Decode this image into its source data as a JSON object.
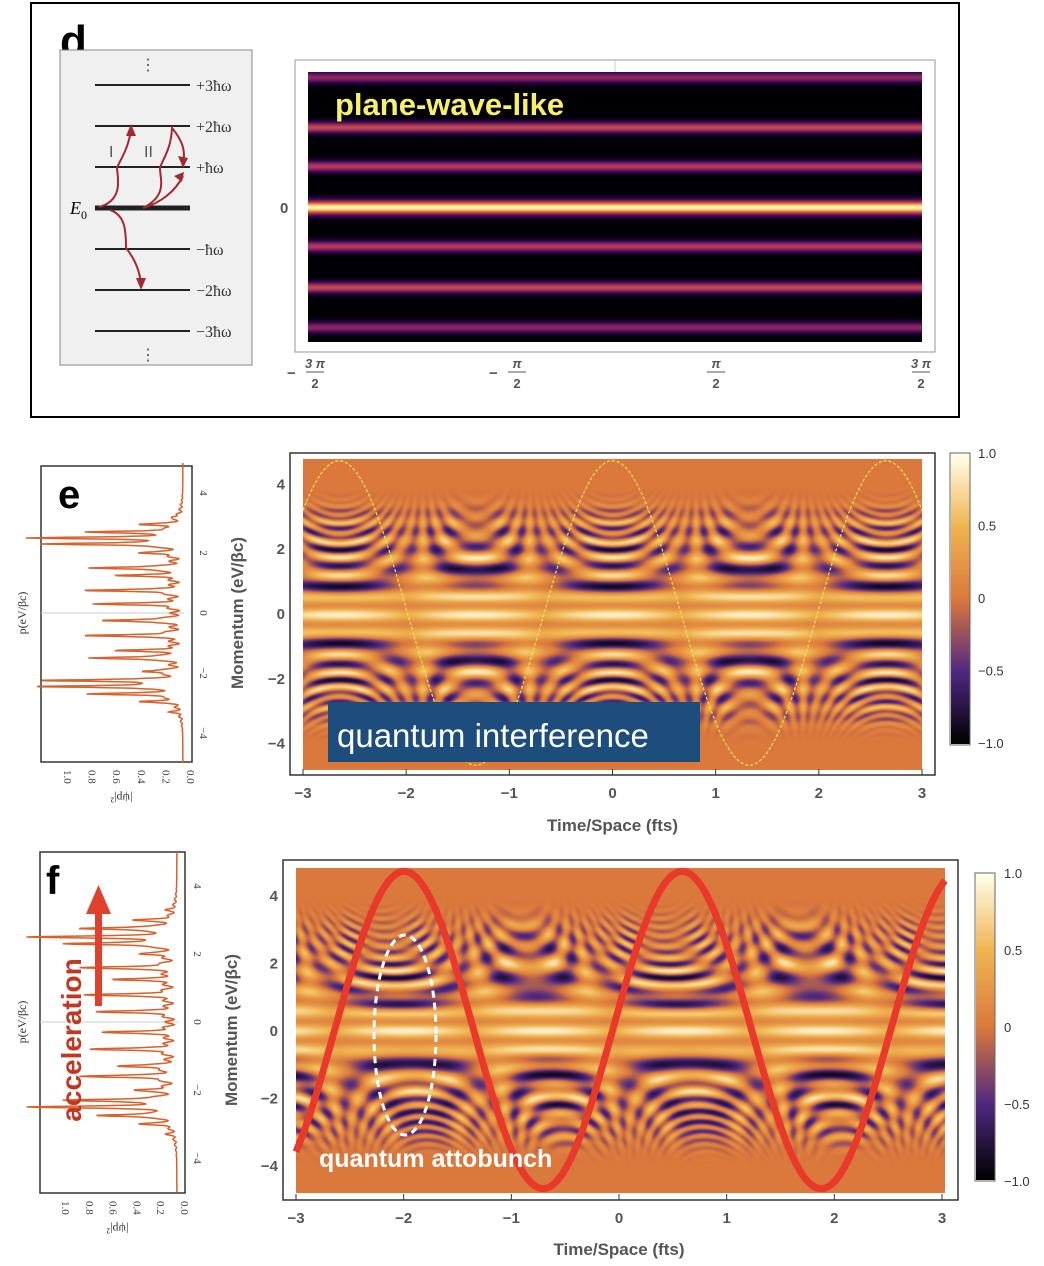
{
  "panel_d": {
    "label": "d",
    "levels": [
      "+3ħω",
      "+2ħω",
      "+ħω",
      "",
      "−ħω",
      "−2ħω",
      "−3ħω"
    ],
    "ground_label": "E",
    "ground_sub": "0",
    "path_labels": [
      "I",
      "II"
    ],
    "annotation": "plane-wave-like",
    "annotation_color": "#f7f06a",
    "y_tick": "0",
    "x_ticks": [
      {
        "sign": "−",
        "num": "3 π",
        "den": "2"
      },
      {
        "sign": "−",
        "num": "π",
        "den": "2"
      },
      {
        "sign": "",
        "num": "π",
        "den": "2"
      },
      {
        "sign": "",
        "num": "3 π",
        "den": "2"
      }
    ]
  },
  "chart_data": [
    {
      "id": "d-heatmap",
      "type": "heatmap",
      "colormap": "inferno",
      "description_bands": "horizontal stripes, brightest at 0",
      "band_intensities": [
        0.45,
        0.6,
        0.55,
        1.0,
        0.55,
        0.6,
        0.45
      ],
      "xlim": [
        "−3π/2",
        "3π/2"
      ]
    },
    {
      "id": "e-spectrum",
      "type": "line",
      "xlabel": "|ψp|²",
      "ylabel": "p(eV/βc)",
      "x_ticks": [
        "1.0",
        "0.8",
        "0.6",
        "0.4",
        "0.2",
        "0.0"
      ],
      "y_ticks": [
        "4",
        "2",
        "0",
        "−2",
        "−4"
      ],
      "peaks": [
        [
          3.2,
          0.07
        ],
        [
          2.95,
          0.3
        ],
        [
          2.7,
          0.7
        ],
        [
          2.5,
          1.15
        ],
        [
          2.3,
          1.1
        ],
        [
          2.0,
          0.3
        ],
        [
          1.5,
          0.75
        ],
        [
          1.25,
          0.45
        ],
        [
          0.75,
          0.75
        ],
        [
          0.3,
          0.65
        ],
        [
          -0.25,
          0.65
        ],
        [
          -0.75,
          0.75
        ],
        [
          -1.25,
          0.45
        ],
        [
          -1.5,
          0.75
        ],
        [
          -1.95,
          0.3
        ],
        [
          -2.25,
          1.1
        ],
        [
          -2.45,
          1.15
        ],
        [
          -2.7,
          0.7
        ],
        [
          -2.95,
          0.3
        ],
        [
          -3.3,
          0.07
        ]
      ]
    },
    {
      "id": "e-heatmap",
      "type": "heatmap",
      "label": "e",
      "xlabel": "Time/Space (fts)",
      "ylabel": "Momentum (eV/βc)",
      "x_ticks": [
        "−3",
        "−2",
        "−1",
        "0",
        "1",
        "2",
        "3"
      ],
      "y_ticks": [
        "4",
        "2",
        "0",
        "−2",
        "−4"
      ],
      "xlim": [
        -3,
        3
      ],
      "ylim": [
        -4.9,
        4.9
      ],
      "colorbar_ticks": [
        "1.0",
        "0.5",
        "0",
        "−0.5",
        "−1.0"
      ],
      "clim": [
        -1,
        1
      ],
      "overlay_curve": {
        "style": "dashed",
        "color": "#f5e94a",
        "amplitude": 4.7,
        "period": 2.65,
        "peak_at": 0
      },
      "annotation": "quantum interference"
    },
    {
      "id": "f-spectrum",
      "type": "line",
      "xlabel": "|ψp|²",
      "ylabel": "p(eV/βc)",
      "x_ticks": [
        "1.0",
        "0.8",
        "0.6",
        "0.4",
        "0.2",
        "0.0"
      ],
      "y_ticks": [
        "4",
        "2",
        "0",
        "−2",
        "−4"
      ],
      "peaks": [
        [
          3.3,
          0.05
        ],
        [
          3.0,
          0.3
        ],
        [
          2.75,
          0.8
        ],
        [
          2.5,
          1.15
        ],
        [
          2.3,
          0.9
        ],
        [
          2.0,
          0.25
        ],
        [
          1.6,
          0.75
        ],
        [
          1.25,
          0.45
        ],
        [
          0.8,
          0.7
        ],
        [
          0.3,
          0.6
        ],
        [
          -0.3,
          0.55
        ],
        [
          -0.8,
          0.65
        ],
        [
          -1.3,
          0.45
        ],
        [
          -1.6,
          0.75
        ],
        [
          -2.0,
          0.3
        ],
        [
          -2.3,
          0.9
        ],
        [
          -2.5,
          1.15
        ],
        [
          -2.75,
          0.65
        ],
        [
          -3.0,
          0.25
        ],
        [
          -3.3,
          0.05
        ]
      ]
    },
    {
      "id": "f-heatmap",
      "type": "heatmap",
      "label": "f",
      "xlabel": "Time/Space (fts)",
      "ylabel": "Momentum (eV/βc)",
      "x_ticks": [
        "−3",
        "−2",
        "−1",
        "0",
        "1",
        "2",
        "3"
      ],
      "y_ticks": [
        "4",
        "2",
        "0",
        "−2",
        "−4"
      ],
      "xlim": [
        -3,
        3
      ],
      "ylim": [
        -4.9,
        4.9
      ],
      "colorbar_ticks": [
        "1.0",
        "0.5",
        "0",
        "−0.5",
        "−1.0"
      ],
      "clim": [
        -1,
        1
      ],
      "overlay_curve": {
        "style": "solid",
        "color": "#e8392a",
        "amplitude": 4.7,
        "period": 2.57,
        "peak_at": -2.0
      },
      "annotation": "quantum attobunch",
      "side_annotation": "acceleration"
    }
  ],
  "colors": {
    "heat_bg": "#db783c",
    "curve_red": "#e8392a",
    "annotation_box": "#1d4d7c",
    "arrow_red": "#e0402c",
    "spectrum": "#d9602a"
  }
}
